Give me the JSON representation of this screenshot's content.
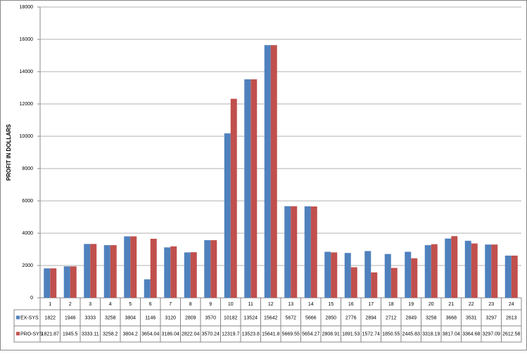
{
  "chart_data": {
    "type": "bar",
    "y_label": "PROFIT IN DOLLARS",
    "categories": [
      "1",
      "2",
      "3",
      "4",
      "5",
      "6",
      "7",
      "8",
      "9",
      "10",
      "11",
      "12",
      "13",
      "14",
      "15",
      "16",
      "17",
      "18",
      "19",
      "20",
      "21",
      "22",
      "23",
      "24"
    ],
    "series": [
      {
        "name": "EX-SYS",
        "color": "#4f81bd",
        "values": [
          1822,
          1946,
          3333,
          3258,
          3804,
          1146,
          3120,
          2809,
          3570,
          10182,
          13524,
          15642,
          5672,
          5666,
          2850,
          2776,
          2894,
          2712,
          2849,
          3258,
          3668,
          3531,
          3297,
          2613
        ]
      },
      {
        "name": "PRO-SYS",
        "color": "#c0504d",
        "values": [
          1821.87,
          1945.5,
          3333.11,
          3258.2,
          3804.2,
          3654.04,
          3186.04,
          2822.04,
          3570.24,
          12319.7,
          13523.8,
          15641.8,
          5669.55,
          5654.27,
          2808.91,
          1891.53,
          1572.74,
          1850.55,
          2445.83,
          3318.19,
          3817.04,
          3364.68,
          3297.09,
          2612.58
        ]
      }
    ],
    "ylim": [
      0,
      18000
    ],
    "yticks": [
      0,
      2000,
      4000,
      6000,
      8000,
      10000,
      12000,
      14000,
      16000,
      18000
    ],
    "grid": true
  }
}
